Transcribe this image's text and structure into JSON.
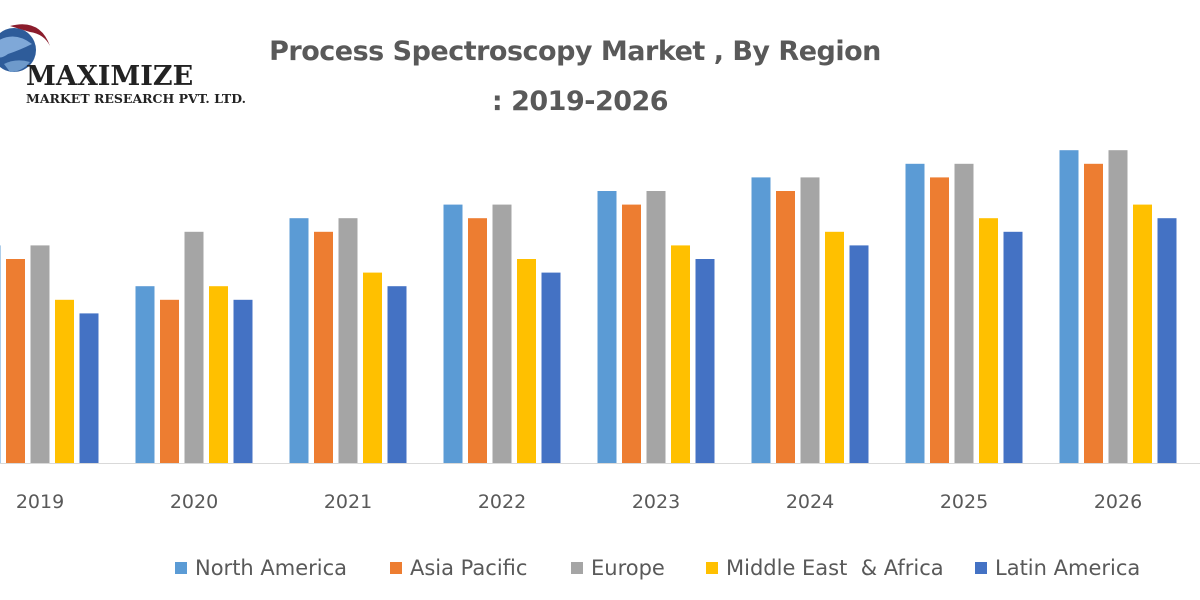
{
  "logo": {
    "name": "MAXIMIZE",
    "subtitle": "MARKET RESEARCH PVT. LTD."
  },
  "chart_data": {
    "type": "bar",
    "title_line1": "Process Spectroscopy Market , By Region",
    "title_line2": ": 2019-2026",
    "categories": [
      "2019",
      "2020",
      "2021",
      "2022",
      "2023",
      "2024",
      "2025",
      "2026"
    ],
    "series": [
      {
        "name": "North America",
        "color": "#5B9BD5",
        "values": [
          16,
          13,
          18,
          19,
          20,
          21,
          22,
          23
        ]
      },
      {
        "name": "Asia Pacific",
        "color": "#ED7D31",
        "values": [
          15,
          12,
          17,
          18,
          19,
          20,
          21,
          22
        ]
      },
      {
        "name": "Europe",
        "color": "#A5A5A5",
        "values": [
          16,
          17,
          18,
          19,
          20,
          21,
          22,
          23
        ]
      },
      {
        "name": "Middle East  & Africa",
        "color": "#FFC000",
        "values": [
          12,
          13,
          14,
          15,
          16,
          17,
          18,
          19
        ]
      },
      {
        "name": "Latin America",
        "color": "#4472C4",
        "values": [
          11,
          12,
          13,
          14,
          15,
          16,
          17,
          18
        ]
      }
    ],
    "ylim": [
      0,
      25
    ],
    "grid": false,
    "xlabel": "",
    "ylabel": "",
    "legend_position": "bottom"
  }
}
